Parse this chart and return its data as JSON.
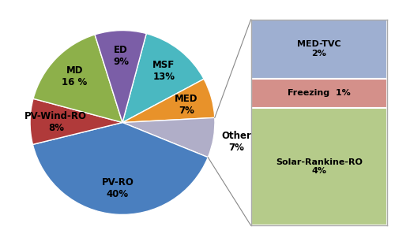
{
  "pie_labels": [
    "MSF\n13%",
    "MED\n7%",
    "Other\n7%",
    "PV-RO\n40%",
    "PV-Wind-RO\n8%",
    "MD\n16 %",
    "ED\n9%"
  ],
  "pie_values": [
    13,
    7,
    7,
    40,
    8,
    16,
    9
  ],
  "pie_colors": [
    "#4ab8c1",
    "#e8922a",
    "#b0aec8",
    "#4a7fbf",
    "#b03a3a",
    "#8db04a",
    "#7b5ea7"
  ],
  "pie_startangle": 75,
  "bar_labels": [
    "MED-TVC\n2%",
    "Freezing  1%",
    "Solar-Rankine-RO\n4%"
  ],
  "bar_values": [
    2,
    1,
    4
  ],
  "bar_colors": [
    "#9eafd1",
    "#d4908a",
    "#b5cb8a"
  ],
  "label_radii": [
    0.72,
    0.72,
    1.25,
    0.72,
    0.72,
    0.72,
    0.72
  ],
  "background_color": "#ffffff",
  "text_color": "#000000"
}
